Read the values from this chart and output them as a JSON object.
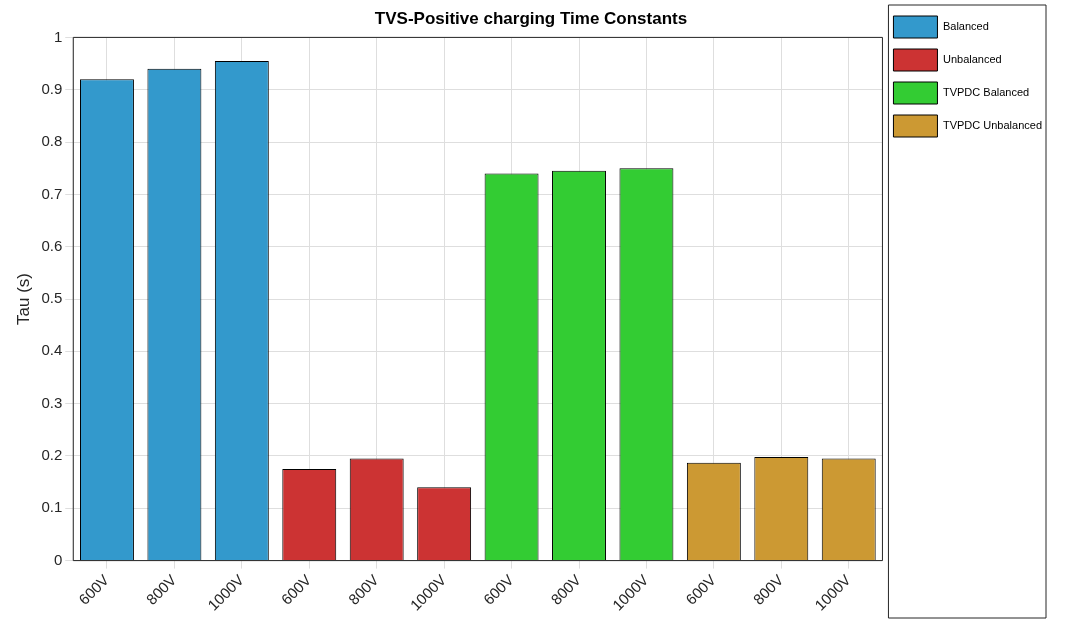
{
  "chart_data": {
    "type": "bar",
    "title": "TVS-Positive charging Time Constants",
    "ylabel": "Tau (s)",
    "categories": [
      "600V",
      "800V",
      "1000V",
      "600V",
      "800V",
      "1000V",
      "600V",
      "800V",
      "1000V",
      "600V",
      "800V",
      "1000V"
    ],
    "series": [
      {
        "name": "Balanced",
        "color": "#3399cc",
        "values": [
          0.92,
          0.94,
          0.955,
          null,
          null,
          null,
          null,
          null,
          null,
          null,
          null,
          null
        ]
      },
      {
        "name": "Unbalanced",
        "color": "#cc3333",
        "values": [
          null,
          null,
          null,
          0.175,
          0.195,
          0.14,
          null,
          null,
          null,
          null,
          null,
          null
        ]
      },
      {
        "name": "TVPDC Balanced",
        "color": "#33cc33",
        "values": [
          null,
          null,
          null,
          null,
          null,
          null,
          0.74,
          0.745,
          0.75,
          null,
          null,
          null
        ]
      },
      {
        "name": "TVPDC Unbalanced",
        "color": "#cc9933",
        "values": [
          null,
          null,
          null,
          null,
          null,
          null,
          null,
          null,
          null,
          0.187,
          0.198,
          0.195
        ]
      }
    ],
    "ylim": [
      0,
      1
    ],
    "yticks": [
      0,
      0.1,
      0.2,
      0.3,
      0.4,
      0.5,
      0.6,
      0.7,
      0.8,
      0.9,
      1
    ],
    "grid": true,
    "legend": "top right"
  }
}
